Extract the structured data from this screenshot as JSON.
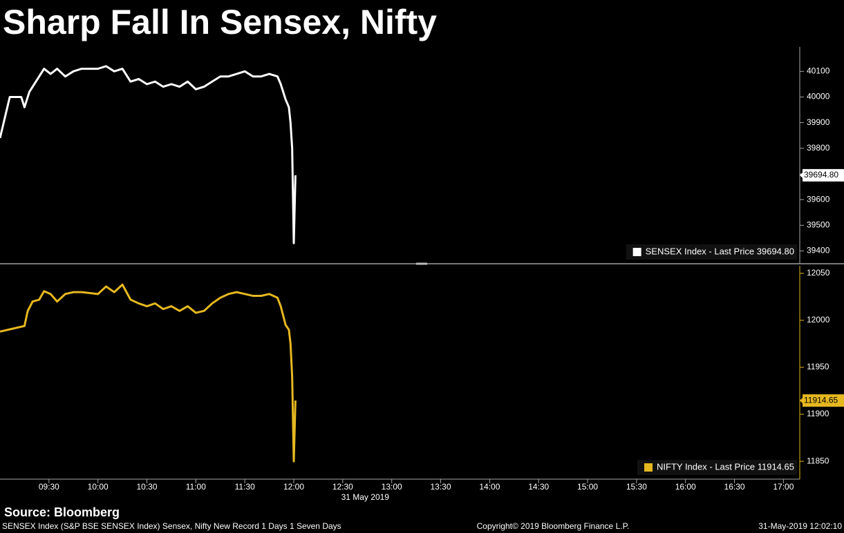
{
  "title": "Sharp Fall In Sensex, Nifty",
  "source": "Source: Bloomberg",
  "footer": {
    "left": "SENSEX Index (S&P BSE SENSEX Index) Sensex, Nifty New Record 1 Days 1 Seven Days",
    "center": "Copyright© 2019 Bloomberg Finance L.P.",
    "right": "31-May-2019 12:02:10"
  },
  "chart_data": [
    {
      "type": "line",
      "x": [
        "09:00",
        "09:06",
        "09:13",
        "09:15",
        "09:18",
        "09:22",
        "09:27",
        "09:31",
        "09:35",
        "09:40",
        "09:45",
        "09:50",
        "10:00",
        "10:05",
        "10:10",
        "10:15",
        "10:20",
        "10:25",
        "10:30",
        "10:35",
        "10:40",
        "10:45",
        "10:50",
        "10:55",
        "11:00",
        "11:05",
        "11:10",
        "11:15",
        "11:20",
        "11:25",
        "11:30",
        "11:35",
        "11:40",
        "11:45",
        "11:50",
        "11:52",
        "11:55",
        "11:57",
        "11:58",
        "11:59",
        "12:00",
        "12:01"
      ],
      "series": [
        {
          "name": "SENSEX Index - Last Price 39694.80",
          "color": "#ffffff",
          "values": [
            39840,
            40000,
            40000,
            39960,
            40020,
            40060,
            40110,
            40090,
            40110,
            40080,
            40100,
            40110,
            40110,
            40120,
            40100,
            40110,
            40060,
            40070,
            40050,
            40060,
            40040,
            40050,
            40040,
            40060,
            40030,
            40040,
            40060,
            40080,
            40080,
            40090,
            40100,
            40080,
            40080,
            40090,
            40080,
            40050,
            39990,
            39960,
            39900,
            39800,
            39430,
            39694.8
          ]
        }
      ],
      "last_price": {
        "value": 39694.8,
        "label": "39694.80"
      },
      "xlim": [
        "09:00",
        "17:10"
      ],
      "ylim": [
        39350,
        40195
      ],
      "yticks": [
        39400,
        39500,
        39600,
        39700,
        39800,
        39900,
        40000,
        40100
      ],
      "legend": "lower right"
    },
    {
      "type": "line",
      "x": [
        "09:00",
        "09:15",
        "09:17",
        "09:20",
        "09:24",
        "09:27",
        "09:31",
        "09:35",
        "09:40",
        "09:45",
        "09:50",
        "10:00",
        "10:05",
        "10:10",
        "10:15",
        "10:20",
        "10:25",
        "10:30",
        "10:35",
        "10:40",
        "10:45",
        "10:50",
        "10:55",
        "11:00",
        "11:05",
        "11:10",
        "11:15",
        "11:20",
        "11:25",
        "11:30",
        "11:35",
        "11:40",
        "11:45",
        "11:50",
        "11:52",
        "11:55",
        "11:57",
        "11:58",
        "11:59",
        "12:00",
        "12:01"
      ],
      "series": [
        {
          "name": "NIFTY Index - Last Price 11914.65",
          "color": "#e6b820",
          "values": [
            11988,
            11994,
            12010,
            12020,
            12022,
            12031,
            12028,
            12020,
            12028,
            12030,
            12030,
            12028,
            12036,
            12030,
            12038,
            12022,
            12018,
            12015,
            12018,
            12012,
            12015,
            12010,
            12015,
            12008,
            12010,
            12018,
            12024,
            12028,
            12030,
            12028,
            12026,
            12026,
            12028,
            12024,
            12015,
            11995,
            11990,
            11975,
            11940,
            11850,
            11914.65
          ]
        }
      ],
      "last_price": {
        "value": 11914.65,
        "label": "11914.65"
      },
      "xlim": [
        "09:00",
        "17:10"
      ],
      "ylim": [
        11831,
        12058
      ],
      "yticks": [
        11850,
        11900,
        11950,
        12000,
        12050
      ],
      "xticks": [
        "09:30",
        "10:00",
        "10:30",
        "11:00",
        "11:30",
        "12:00",
        "12:30",
        "13:00",
        "13:30",
        "14:00",
        "14:30",
        "15:00",
        "15:30",
        "16:00",
        "16:30",
        "17:00"
      ],
      "xlabel": "31 May 2019",
      "legend": "lower right"
    }
  ]
}
